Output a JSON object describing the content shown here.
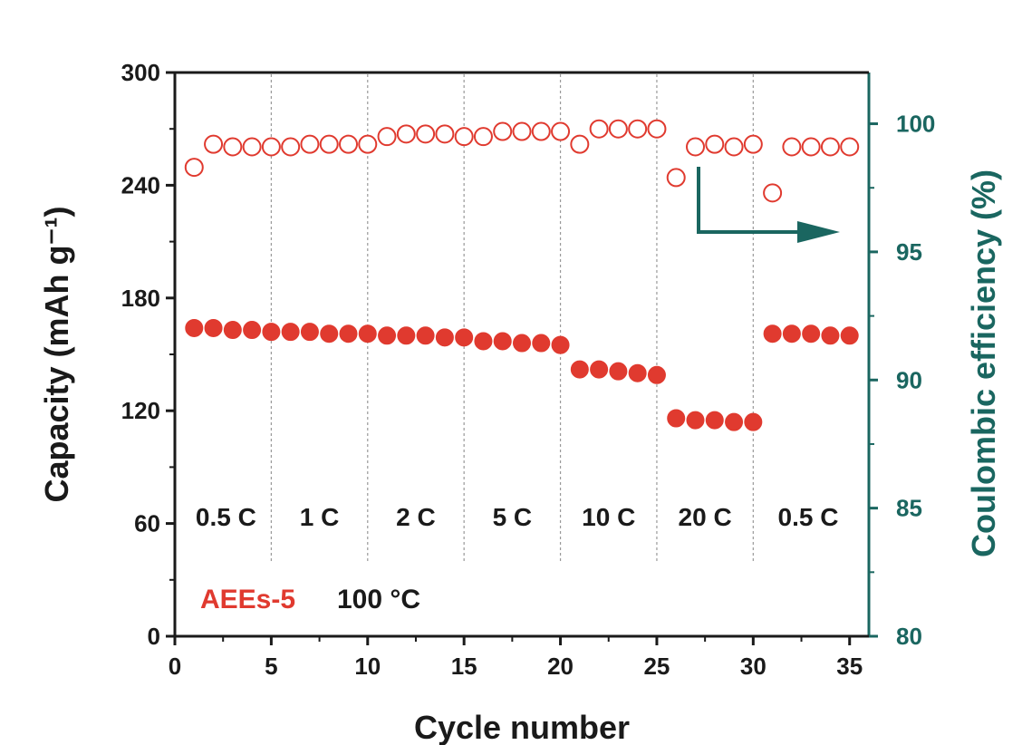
{
  "chart_data": {
    "type": "scatter",
    "xlabel": "Cycle number",
    "ylabel_left": "Capacity (mAh g⁻¹)",
    "ylabel_right": "Coulombic efficiency (%)",
    "xlim": [
      0,
      36
    ],
    "ylim_left": [
      0,
      300
    ],
    "ylim_right": [
      80,
      102
    ],
    "x_ticks": [
      "0",
      "5",
      "10",
      "15",
      "20",
      "25",
      "30",
      "35"
    ],
    "y_left_ticks": [
      "0",
      "60",
      "120",
      "180",
      "240",
      "300"
    ],
    "y_right_ticks": [
      "80",
      "85",
      "90",
      "95",
      "100"
    ],
    "rate_labels": [
      "0.5 C",
      "1 C",
      "2 C",
      "5 C",
      "10 C",
      "20 C",
      "0.5 C"
    ],
    "rate_boundaries": [
      5,
      10,
      15,
      20,
      25,
      30
    ],
    "legend": {
      "sample": "AEEs-5",
      "condition": "100 °C"
    },
    "colors": {
      "capacity": "#e03a2f",
      "efficiency_axis": "#1a6660",
      "arrow": "#1a6660",
      "grid": "#999999"
    },
    "series": [
      {
        "name": "Capacity",
        "axis": "left",
        "marker": "filled-circle",
        "x": [
          1,
          2,
          3,
          4,
          5,
          6,
          7,
          8,
          9,
          10,
          11,
          12,
          13,
          14,
          15,
          16,
          17,
          18,
          19,
          20,
          21,
          22,
          23,
          24,
          25,
          26,
          27,
          28,
          29,
          30,
          31,
          32,
          33,
          34,
          35
        ],
        "values": [
          164,
          164,
          163,
          163,
          162,
          162,
          162,
          161,
          161,
          161,
          160,
          160,
          160,
          159,
          159,
          157,
          157,
          156,
          156,
          155,
          142,
          142,
          141,
          140,
          139,
          116,
          115,
          115,
          114,
          114,
          161,
          161,
          161,
          160,
          160
        ]
      },
      {
        "name": "Coulombic efficiency",
        "axis": "right",
        "marker": "open-circle",
        "x": [
          1,
          2,
          3,
          4,
          5,
          6,
          7,
          8,
          9,
          10,
          11,
          12,
          13,
          14,
          15,
          16,
          17,
          18,
          19,
          20,
          21,
          22,
          23,
          24,
          25,
          26,
          27,
          28,
          29,
          30,
          31,
          32,
          33,
          34,
          35
        ],
        "values": [
          98.3,
          99.2,
          99.1,
          99.1,
          99.1,
          99.1,
          99.2,
          99.2,
          99.2,
          99.2,
          99.5,
          99.6,
          99.6,
          99.6,
          99.5,
          99.5,
          99.7,
          99.7,
          99.7,
          99.7,
          99.2,
          99.8,
          99.8,
          99.8,
          99.8,
          97.9,
          99.1,
          99.2,
          99.1,
          99.2,
          97.3,
          99.1,
          99.1,
          99.1,
          99.1
        ]
      }
    ]
  }
}
